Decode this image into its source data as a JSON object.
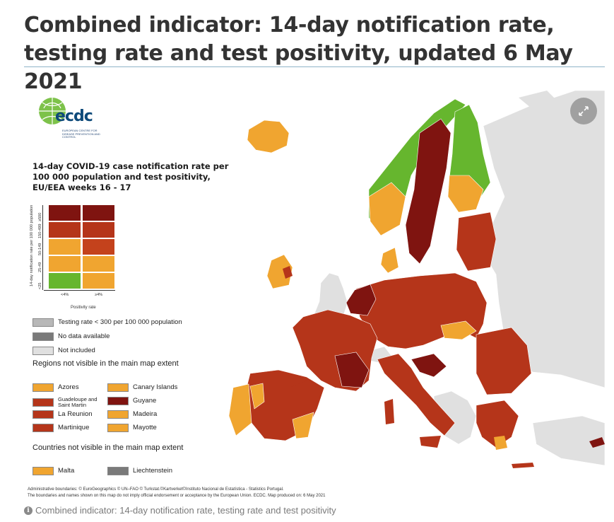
{
  "page": {
    "title": "Combined indicator: 14-day notification rate, testing rate and test positivity, updated 6 May 2021",
    "caption": "Combined indicator: 14-day notification rate, testing rate and test positivity"
  },
  "logo": {
    "text": "ecdc",
    "subtitle": "European Centre for Disease Prevention and Control"
  },
  "legend": {
    "title": "14-day COVID-19 case notification rate per 100 000 population and test positivity, EU/EEA weeks 16 - 17",
    "y_axis_label": "14-day notification rate per 100 000 population",
    "y_bins": [
      "<25",
      "25-49",
      "50-149",
      "150-499",
      "≥500"
    ],
    "x_bins": [
      "<4%",
      "≥4%"
    ],
    "x_axis_label": "Positivity rate",
    "matrix_colors": {
      "r500": [
        "#7f1410",
        "#7f1410"
      ],
      "r150": [
        "#b5351a",
        "#b5351a"
      ],
      "r50": [
        "#f0a530",
        "#c4421c"
      ],
      "r25": [
        "#f0a530",
        "#f0a530"
      ],
      "r0": [
        "#66b62e",
        "#f0a530"
      ]
    },
    "other_items": [
      {
        "label": "Testing rate < 300 per 100 000 population",
        "color": "#b8b8b8"
      },
      {
        "label": "No data available",
        "color": "#7a7a7a"
      },
      {
        "label": "Not included",
        "color": "#e0e0e0"
      }
    ],
    "regions_title": "Regions not visible in the main map extent",
    "regions": [
      {
        "label": "Azores",
        "color": "#f0a530"
      },
      {
        "label": "Canary Islands",
        "color": "#f0a530"
      },
      {
        "label": "Guadeloupe and Saint Martin",
        "color": "#b5351a"
      },
      {
        "label": "Guyane",
        "color": "#7f1410"
      },
      {
        "label": "La Reunion",
        "color": "#b5351a"
      },
      {
        "label": "Madeira",
        "color": "#f0a530"
      },
      {
        "label": "Martinique",
        "color": "#b5351a"
      },
      {
        "label": "Mayotte",
        "color": "#f0a530"
      }
    ],
    "countries_title": "Countries not visible in the main map extent",
    "countries": [
      {
        "label": "Malta",
        "color": "#f0a530"
      },
      {
        "label": "Liechtenstein",
        "color": "#7a7a7a"
      }
    ]
  },
  "credits": {
    "line1": "Administrative boundaries: © EuroGeographics © UN–FAO © Turkstat.©Kartverket©Instituto Nacional de Estatística - Statistics Portugal.",
    "line2": "The boundaries and names shown on this map do not imply official endorsement or acceptance by the European Union. ECDC. Map produced on: 6 May 2021"
  },
  "colors": {
    "dark_red": "#7f1410",
    "red": "#b5351a",
    "orange": "#f0a530",
    "green": "#66b62e",
    "not_included": "#e0e0e0"
  }
}
